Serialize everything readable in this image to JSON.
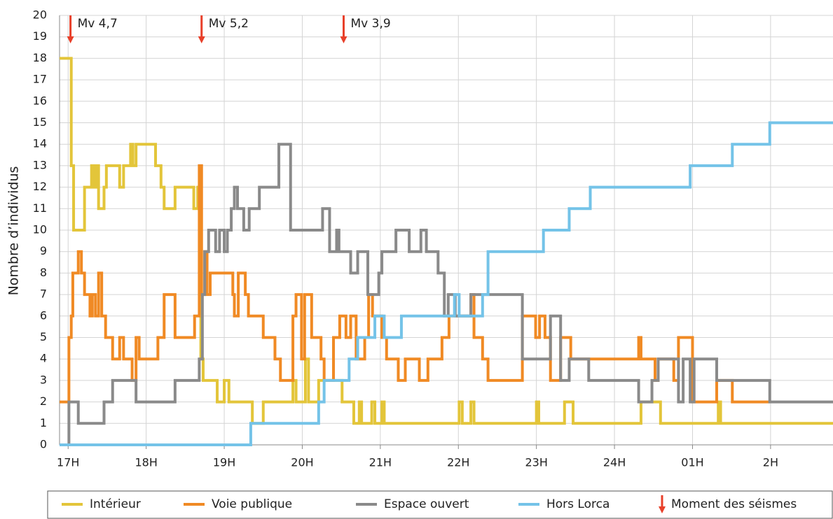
{
  "chart_data": {
    "type": "line",
    "step": "post",
    "ylabel": "Nombre d’individus",
    "xlim": [
      16.89,
      26.8
    ],
    "ylim": [
      0,
      20
    ],
    "yticks": [
      0,
      1,
      2,
      3,
      4,
      5,
      6,
      7,
      8,
      9,
      10,
      11,
      12,
      13,
      14,
      15,
      16,
      17,
      18,
      19,
      20
    ],
    "xticks": [
      {
        "value": 17,
        "label": "17H"
      },
      {
        "value": 18,
        "label": "18H"
      },
      {
        "value": 19,
        "label": "19H"
      },
      {
        "value": 20,
        "label": "20H"
      },
      {
        "value": 21,
        "label": "21H"
      },
      {
        "value": 22,
        "label": "22H"
      },
      {
        "value": 23,
        "label": "23H"
      },
      {
        "value": 24,
        "label": "24H"
      },
      {
        "value": 25,
        "label": "01H"
      },
      {
        "value": 26,
        "label": "2H"
      }
    ],
    "grid": true,
    "series": [
      {
        "name": "Intérieur",
        "color": "#e3c53a",
        "x": [
          16.89,
          17.04,
          17.07,
          17.21,
          17.3,
          17.33,
          17.36,
          17.39,
          17.46,
          17.49,
          17.66,
          17.71,
          17.8,
          17.83,
          17.87,
          18.12,
          18.19,
          18.23,
          18.37,
          18.61,
          18.66,
          18.7,
          18.73,
          18.91,
          19.0,
          19.06,
          19.36,
          19.5,
          19.88,
          19.92,
          20.04,
          20.08,
          20.21,
          20.51,
          20.66,
          20.73,
          20.76,
          20.89,
          20.93,
          21.02,
          21.05,
          22.01,
          22.05,
          22.16,
          22.2,
          23.0,
          23.03,
          23.36,
          23.47,
          24.34,
          24.59,
          25.33,
          25.36,
          26.8
        ],
        "values": [
          18,
          13,
          10,
          12,
          13,
          12,
          13,
          11,
          12,
          13,
          12,
          13,
          14,
          13,
          14,
          13,
          12,
          11,
          12,
          11,
          12,
          4,
          3,
          2,
          3,
          2,
          1,
          2,
          3,
          2,
          4,
          2,
          3,
          2,
          1,
          2,
          1,
          2,
          1,
          2,
          1,
          2,
          1,
          2,
          1,
          2,
          1,
          2,
          1,
          2,
          1,
          2,
          1,
          1
        ]
      },
      {
        "name": "Voie publique",
        "color": "#f08a24",
        "x": [
          16.89,
          17.01,
          17.04,
          17.06,
          17.13,
          17.17,
          17.21,
          17.28,
          17.31,
          17.35,
          17.39,
          17.43,
          17.48,
          17.57,
          17.66,
          17.71,
          17.82,
          17.87,
          17.91,
          18.15,
          18.23,
          18.37,
          18.62,
          18.68,
          18.71,
          18.75,
          18.78,
          18.82,
          19.11,
          19.13,
          19.18,
          19.27,
          19.31,
          19.5,
          19.65,
          19.72,
          19.88,
          19.92,
          19.99,
          20.03,
          20.12,
          20.24,
          20.28,
          20.4,
          20.48,
          20.56,
          20.62,
          20.69,
          20.8,
          20.85,
          20.9,
          21.02,
          21.08,
          21.23,
          21.32,
          21.5,
          21.61,
          21.79,
          21.88,
          22.16,
          22.2,
          22.31,
          22.38,
          22.82,
          22.99,
          23.04,
          23.11,
          23.18,
          23.31,
          23.44,
          24.31,
          24.34,
          24.52,
          24.56,
          24.76,
          24.82,
          25.0,
          25.31,
          25.51,
          25.99
        ],
        "values": [
          2,
          5,
          6,
          8,
          9,
          8,
          7,
          6,
          7,
          6,
          8,
          6,
          5,
          4,
          5,
          4,
          3,
          5,
          4,
          5,
          7,
          5,
          6,
          13,
          7,
          9,
          7,
          8,
          7,
          6,
          8,
          7,
          6,
          5,
          4,
          3,
          6,
          7,
          4,
          7,
          5,
          4,
          3,
          5,
          6,
          5,
          6,
          4,
          5,
          7,
          6,
          5,
          4,
          3,
          4,
          3,
          4,
          5,
          6,
          7,
          5,
          4,
          3,
          6,
          5,
          6,
          5,
          3,
          5,
          4,
          5,
          4,
          3,
          4,
          3,
          5,
          2,
          3,
          2,
          2
        ]
      },
      {
        "name": "Espace ouvert",
        "color": "#8a8a8a",
        "x": [
          16.89,
          17.01,
          17.13,
          17.46,
          17.57,
          17.87,
          18.37,
          18.68,
          18.72,
          18.75,
          18.8,
          18.89,
          18.94,
          19.0,
          19.04,
          19.09,
          19.13,
          19.17,
          19.25,
          19.32,
          19.45,
          19.7,
          19.85,
          20.26,
          20.35,
          20.44,
          20.47,
          20.62,
          20.71,
          20.84,
          20.98,
          21.02,
          21.2,
          21.37,
          21.52,
          21.59,
          21.74,
          21.82,
          21.87,
          21.96,
          22.16,
          22.82,
          23.18,
          23.31,
          23.42,
          23.49,
          23.67,
          24.31,
          24.48,
          24.56,
          24.82,
          24.88,
          24.97,
          25.02,
          25.31,
          25.99,
          26.8
        ],
        "values": [
          0,
          2,
          1,
          2,
          3,
          2,
          3,
          4,
          7,
          9,
          10,
          9,
          10,
          9,
          10,
          11,
          12,
          11,
          10,
          11,
          12,
          14,
          10,
          11,
          9,
          10,
          9,
          8,
          9,
          7,
          8,
          9,
          10,
          9,
          10,
          9,
          8,
          6,
          7,
          6,
          7,
          4,
          6,
          3,
          4,
          4,
          3,
          2,
          3,
          4,
          2,
          4,
          2,
          4,
          3,
          2,
          2
        ]
      },
      {
        "name": "Hors Lorca",
        "color": "#74c3e8",
        "x": [
          16.89,
          19.34,
          20.21,
          20.28,
          20.6,
          20.71,
          20.93,
          21.05,
          21.27,
          21.95,
          22.01,
          22.31,
          22.38,
          23.09,
          23.42,
          23.69,
          24.97,
          25.51,
          25.99,
          26.8
        ],
        "values": [
          0,
          1,
          2,
          3,
          4,
          5,
          6,
          5,
          6,
          7,
          6,
          7,
          9,
          10,
          11,
          12,
          13,
          14,
          15,
          15
        ]
      }
    ],
    "events": [
      {
        "x": 17.03,
        "label": "Mv 4,7"
      },
      {
        "x": 18.71,
        "label": "Mv 5,2"
      },
      {
        "x": 20.53,
        "label": "Mv 3,9"
      }
    ],
    "event_color": "#e8402a",
    "event_legend": "Moment des séismes"
  }
}
